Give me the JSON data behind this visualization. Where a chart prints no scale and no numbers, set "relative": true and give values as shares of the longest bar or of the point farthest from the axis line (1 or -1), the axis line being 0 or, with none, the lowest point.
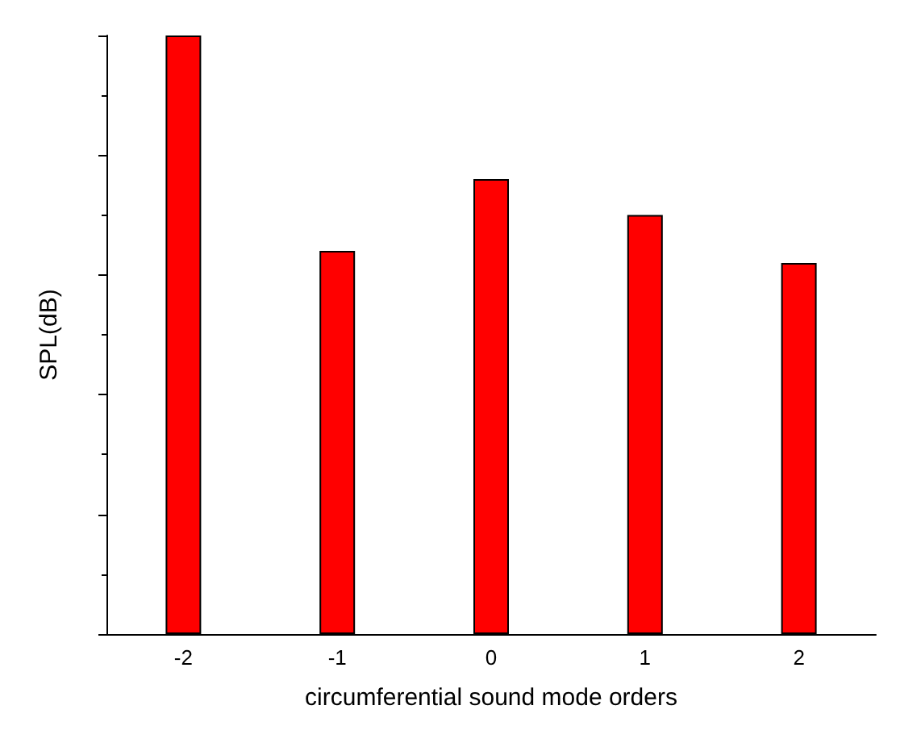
{
  "chart_data": {
    "type": "bar",
    "relative": true,
    "xlabel": "circumferential sound mode orders",
    "ylabel": "SPL(dB)",
    "categories": [
      "-2",
      "-1",
      "0",
      "1",
      "2"
    ],
    "values": [
      1,
      0.64,
      0.76,
      0.7,
      0.62
    ],
    "color": "#ff0000"
  }
}
